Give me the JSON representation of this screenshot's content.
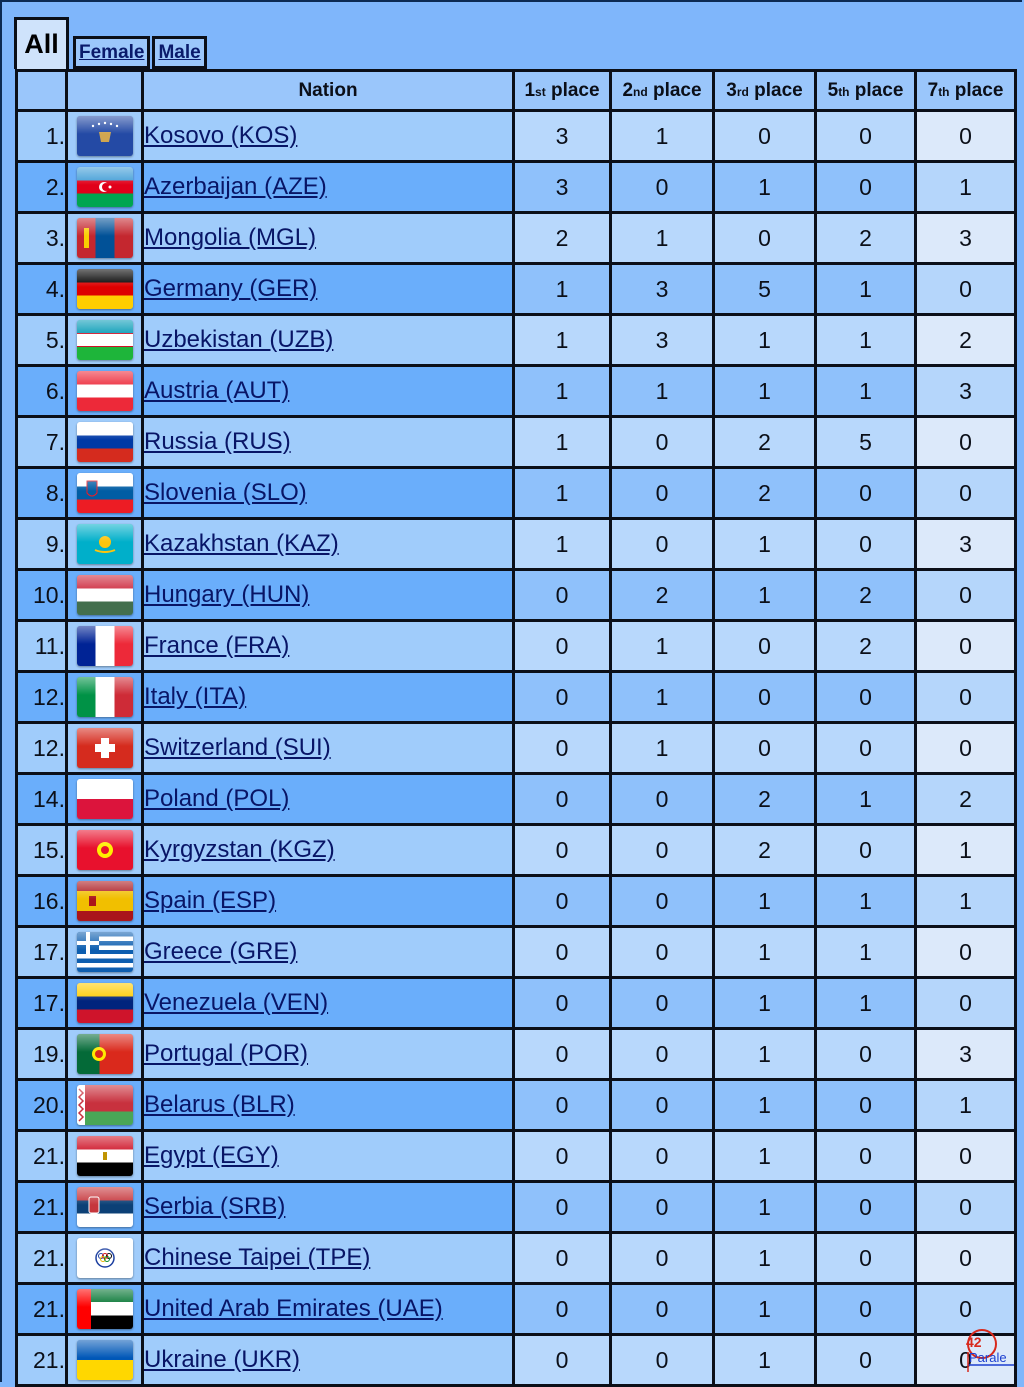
{
  "tabs": {
    "all": "All",
    "female": "Female",
    "male": "Male"
  },
  "table": {
    "headers": {
      "nation": "Nation",
      "p1": {
        "num": "1",
        "suf": "st",
        "word": " place"
      },
      "p2": {
        "num": "2",
        "suf": "nd",
        "word": " place"
      },
      "p3": {
        "num": "3",
        "suf": "rd",
        "word": " place"
      },
      "p5": {
        "num": "5",
        "suf": "th",
        "word": " place"
      },
      "p7": {
        "num": "7",
        "suf": "th",
        "word": " place"
      }
    },
    "rows": [
      {
        "rank": "1.",
        "nation": "Kosovo (KOS)",
        "flag": "kosovo-flag-icon",
        "p1": "3",
        "p2": "1",
        "p3": "0",
        "p5": "0",
        "p7": "0"
      },
      {
        "rank": "2.",
        "nation": "Azerbaijan (AZE)",
        "flag": "azerbaijan-flag-icon",
        "p1": "3",
        "p2": "0",
        "p3": "1",
        "p5": "0",
        "p7": "1"
      },
      {
        "rank": "3.",
        "nation": "Mongolia (MGL)",
        "flag": "mongolia-flag-icon",
        "p1": "2",
        "p2": "1",
        "p3": "0",
        "p5": "2",
        "p7": "3"
      },
      {
        "rank": "4.",
        "nation": "Germany (GER)",
        "flag": "germany-flag-icon",
        "p1": "1",
        "p2": "3",
        "p3": "5",
        "p5": "1",
        "p7": "0"
      },
      {
        "rank": "5.",
        "nation": "Uzbekistan (UZB)",
        "flag": "uzbekistan-flag-icon",
        "p1": "1",
        "p2": "3",
        "p3": "1",
        "p5": "1",
        "p7": "2"
      },
      {
        "rank": "6.",
        "nation": "Austria (AUT)",
        "flag": "austria-flag-icon",
        "p1": "1",
        "p2": "1",
        "p3": "1",
        "p5": "1",
        "p7": "3"
      },
      {
        "rank": "7.",
        "nation": "Russia (RUS)",
        "flag": "russia-flag-icon",
        "p1": "1",
        "p2": "0",
        "p3": "2",
        "p5": "5",
        "p7": "0"
      },
      {
        "rank": "8.",
        "nation": "Slovenia (SLO)",
        "flag": "slovenia-flag-icon",
        "p1": "1",
        "p2": "0",
        "p3": "2",
        "p5": "0",
        "p7": "0"
      },
      {
        "rank": "9.",
        "nation": "Kazakhstan (KAZ)",
        "flag": "kazakhstan-flag-icon",
        "p1": "1",
        "p2": "0",
        "p3": "1",
        "p5": "0",
        "p7": "3"
      },
      {
        "rank": "10.",
        "nation": "Hungary (HUN)",
        "flag": "hungary-flag-icon",
        "p1": "0",
        "p2": "2",
        "p3": "1",
        "p5": "2",
        "p7": "0"
      },
      {
        "rank": "11.",
        "nation": "France (FRA)",
        "flag": "france-flag-icon",
        "p1": "0",
        "p2": "1",
        "p3": "0",
        "p5": "2",
        "p7": "0"
      },
      {
        "rank": "12.",
        "nation": "Italy (ITA)",
        "flag": "italy-flag-icon",
        "p1": "0",
        "p2": "1",
        "p3": "0",
        "p5": "0",
        "p7": "0"
      },
      {
        "rank": "12.",
        "nation": "Switzerland (SUI)",
        "flag": "switzerland-flag-icon",
        "p1": "0",
        "p2": "1",
        "p3": "0",
        "p5": "0",
        "p7": "0"
      },
      {
        "rank": "14.",
        "nation": "Poland (POL)",
        "flag": "poland-flag-icon",
        "p1": "0",
        "p2": "0",
        "p3": "2",
        "p5": "1",
        "p7": "2"
      },
      {
        "rank": "15.",
        "nation": "Kyrgyzstan (KGZ)",
        "flag": "kyrgyzstan-flag-icon",
        "p1": "0",
        "p2": "0",
        "p3": "2",
        "p5": "0",
        "p7": "1"
      },
      {
        "rank": "16.",
        "nation": "Spain (ESP)",
        "flag": "spain-flag-icon",
        "p1": "0",
        "p2": "0",
        "p3": "1",
        "p5": "1",
        "p7": "1"
      },
      {
        "rank": "17.",
        "nation": "Greece (GRE)",
        "flag": "greece-flag-icon",
        "p1": "0",
        "p2": "0",
        "p3": "1",
        "p5": "1",
        "p7": "0"
      },
      {
        "rank": "17.",
        "nation": "Venezuela (VEN)",
        "flag": "venezuela-flag-icon",
        "p1": "0",
        "p2": "0",
        "p3": "1",
        "p5": "1",
        "p7": "0"
      },
      {
        "rank": "19.",
        "nation": "Portugal (POR)",
        "flag": "portugal-flag-icon",
        "p1": "0",
        "p2": "0",
        "p3": "1",
        "p5": "0",
        "p7": "3"
      },
      {
        "rank": "20.",
        "nation": "Belarus (BLR)",
        "flag": "belarus-flag-icon",
        "p1": "0",
        "p2": "0",
        "p3": "1",
        "p5": "0",
        "p7": "1"
      },
      {
        "rank": "21.",
        "nation": "Egypt (EGY)",
        "flag": "egypt-flag-icon",
        "p1": "0",
        "p2": "0",
        "p3": "1",
        "p5": "0",
        "p7": "0"
      },
      {
        "rank": "21.",
        "nation": "Serbia (SRB)",
        "flag": "serbia-flag-icon",
        "p1": "0",
        "p2": "0",
        "p3": "1",
        "p5": "0",
        "p7": "0"
      },
      {
        "rank": "21.",
        "nation": "Chinese Taipei (TPE)",
        "flag": "chinese-taipei-flag-icon",
        "p1": "0",
        "p2": "0",
        "p3": "1",
        "p5": "0",
        "p7": "0"
      },
      {
        "rank": "21.",
        "nation": "United Arab Emirates (UAE)",
        "flag": "uae-flag-icon",
        "p1": "0",
        "p2": "0",
        "p3": "1",
        "p5": "0",
        "p7": "0"
      },
      {
        "rank": "21.",
        "nation": "Ukraine (UKR)",
        "flag": "ukraine-flag-icon",
        "p1": "0",
        "p2": "0",
        "p3": "1",
        "p5": "0",
        "p7": "0"
      }
    ]
  },
  "watermark": {
    "line1": "42",
    "line2": "Parale",
    "icon": "watermark-logo"
  },
  "colors": {
    "header_bg": "#9ac6fb",
    "row_odd": "#a0ccfb",
    "row_even": "#6aaefb",
    "link": "#081566"
  }
}
